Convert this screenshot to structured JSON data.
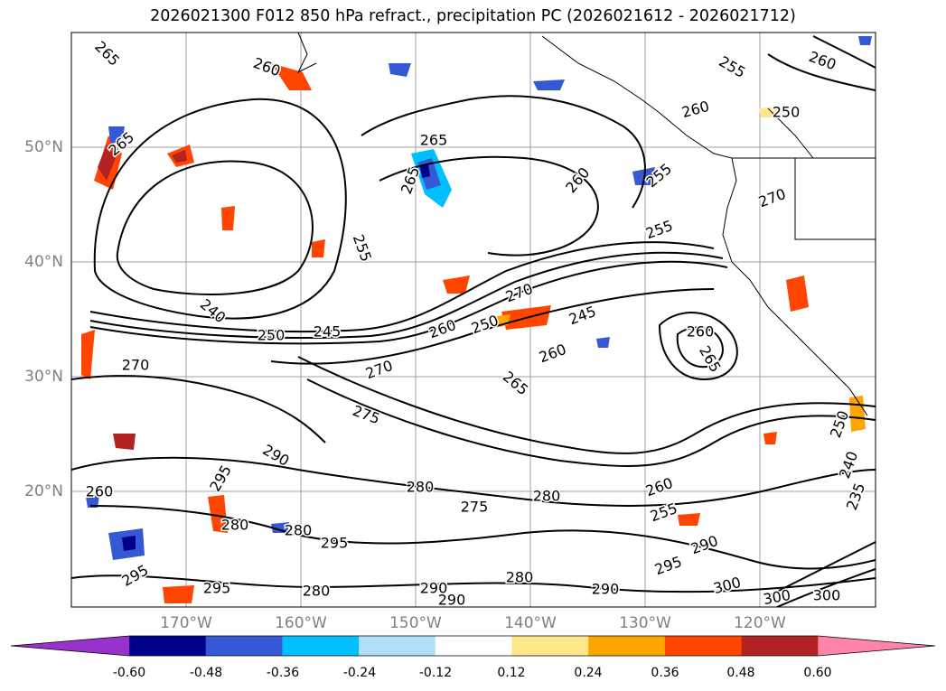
{
  "title": "2026021300 F012 850 hPa refract., precipitation PC (2026021612 - 2026021712)",
  "map": {
    "lat_labels": [
      "50°N",
      "40°N",
      "30°N",
      "20°N"
    ],
    "lon_labels": [
      "170°W",
      "160°W",
      "150°W",
      "140°W",
      "130°W",
      "120°W"
    ],
    "contour_labels": [
      "265",
      "260",
      "255",
      "260",
      "250",
      "265",
      "265",
      "260",
      "255",
      "265",
      "255",
      "260",
      "240",
      "250",
      "245",
      "270",
      "250",
      "260",
      "245",
      "270",
      "260",
      "265",
      "270",
      "275",
      "265",
      "255",
      "260",
      "250",
      "280",
      "280",
      "275",
      "260",
      "255",
      "240",
      "235",
      "270",
      "295",
      "290",
      "260",
      "280",
      "295",
      "280",
      "295",
      "295",
      "290",
      "280",
      "290",
      "295",
      "300",
      "300",
      "300",
      "290",
      "290",
      "280"
    ]
  },
  "colorbar": {
    "ticks": [
      "-0.60",
      "-0.48",
      "-0.36",
      "-0.24",
      "-0.12",
      "0.12",
      "0.24",
      "0.36",
      "0.48",
      "0.60"
    ],
    "colors": [
      "#9932cc",
      "#00008b",
      "#3558d4",
      "#00bfff",
      "#b0e0f8",
      "#ffffff",
      "#fee78a",
      "#ffa500",
      "#ff4500",
      "#b22222",
      "#ff85a8"
    ]
  }
}
